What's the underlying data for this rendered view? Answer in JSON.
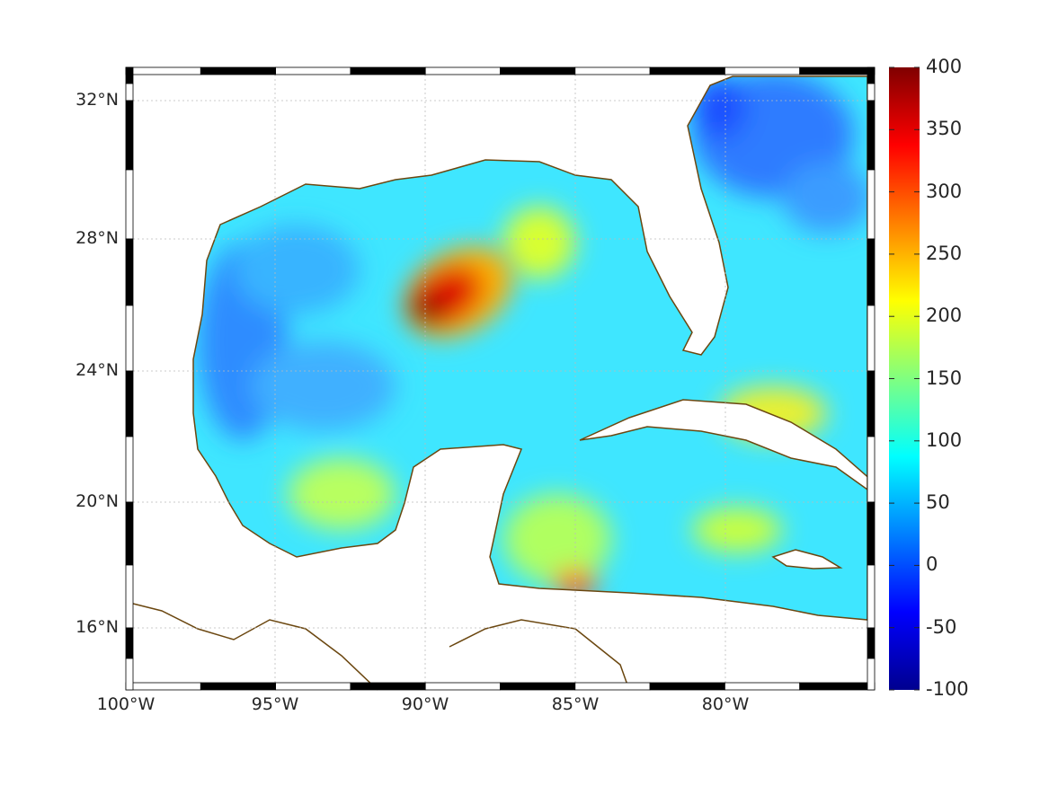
{
  "map": {
    "lat_labels": [
      "32°N",
      "28°N",
      "24°N",
      "20°N",
      "16°N"
    ],
    "lon_labels": [
      "100°W",
      "95°W",
      "90°W",
      "85°W",
      "80°W"
    ],
    "colors": {
      "coast": "#6b4710",
      "land": "#ffffff",
      "frame": "#000000"
    }
  },
  "colorbar": {
    "ticks": [
      "400",
      "350",
      "300",
      "250",
      "200",
      "150",
      "100",
      "50",
      "0",
      "-50",
      "-100"
    ],
    "range": [
      -100,
      400
    ],
    "colormap": [
      "#00008f",
      "#0000ff",
      "#0080ff",
      "#00ffff",
      "#80ff80",
      "#ffff00",
      "#ff8000",
      "#ff0000",
      "#800000"
    ]
  }
}
